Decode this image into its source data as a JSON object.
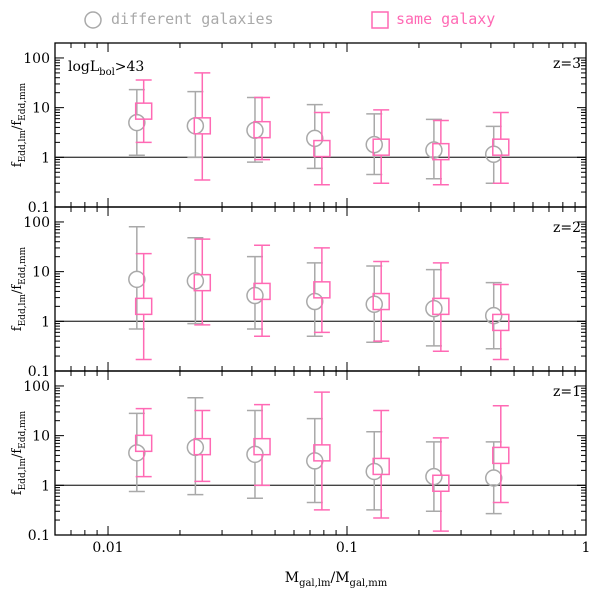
{
  "legend": {
    "different": "different galaxies",
    "same": "same galaxy"
  },
  "colors": {
    "different": "#a9a9a9",
    "same": "#ff69b4",
    "axis": "#000000",
    "reference_line": "#444444"
  },
  "annotation": "logL_bol>43",
  "annotation_parts": {
    "main": "logL",
    "sub": "bol",
    "rest": ">43"
  },
  "xlabel": {
    "main": "M",
    "sub": "gal,lm",
    "sep": "/M",
    "sub2": "gal,mm"
  },
  "ylabel": {
    "main": "f",
    "sub": "Edd,lm",
    "sep": "/f",
    "sub2": "Edd,mm"
  },
  "chart_data": {
    "type": "scatter",
    "xscale": "log",
    "yscale": "log",
    "xlim": [
      0.006,
      1
    ],
    "ylim": [
      0.1,
      200
    ],
    "xticklabels": [
      [
        "0.01",
        0.01
      ],
      [
        "0.1",
        0.1
      ],
      [
        "1",
        1
      ]
    ],
    "yticklabels": [
      [
        "0.1",
        0.1
      ],
      [
        "1",
        1
      ],
      [
        "10",
        10
      ],
      [
        "100",
        100
      ]
    ],
    "reference_y": 1,
    "panels": [
      {
        "label": "z=3",
        "series": [
          {
            "name": "different galaxies",
            "marker": "circle",
            "x": [
              0.0132,
              0.0232,
              0.0412,
              0.0733,
              0.13,
              0.231,
              0.411
            ],
            "y": [
              5.0,
              4.3,
              3.5,
              2.4,
              1.8,
              1.4,
              1.15
            ],
            "lo": [
              1.1,
              1.0,
              0.8,
              0.6,
              0.45,
              0.37,
              0.3
            ],
            "hi": [
              23,
              21,
              16,
              11.5,
              7.5,
              5.8,
              4.2
            ]
          },
          {
            "name": "same galaxy",
            "marker": "square",
            "x": [
              0.0141,
              0.0248,
              0.0441,
              0.0785,
              0.139,
              0.247,
              0.44
            ],
            "y": [
              8.5,
              4.3,
              3.6,
              1.5,
              1.6,
              1.3,
              1.6
            ],
            "lo": [
              2.0,
              0.35,
              0.9,
              0.28,
              0.3,
              0.28,
              0.3
            ],
            "hi": [
              36,
              50,
              16,
              8,
              9,
              5.5,
              8
            ]
          }
        ]
      },
      {
        "label": "z=2",
        "series": [
          {
            "name": "different galaxies",
            "marker": "circle",
            "x": [
              0.0132,
              0.0232,
              0.0412,
              0.0733,
              0.13,
              0.231,
              0.411
            ],
            "y": [
              7.0,
              6.5,
              3.3,
              2.5,
              2.2,
              1.8,
              1.3
            ],
            "lo": [
              0.7,
              0.9,
              0.7,
              0.5,
              0.38,
              0.32,
              0.28
            ],
            "hi": [
              80,
              48,
              20,
              15,
              13,
              11,
              6
            ]
          },
          {
            "name": "same galaxy",
            "marker": "square",
            "x": [
              0.0141,
              0.0248,
              0.0441,
              0.0785,
              0.139,
              0.247,
              0.44
            ],
            "y": [
              2.0,
              6.0,
              4.0,
              4.3,
              2.5,
              2.0,
              0.95
            ],
            "lo": [
              0.17,
              0.85,
              0.5,
              0.6,
              0.4,
              0.25,
              0.17
            ],
            "hi": [
              23,
              45,
              34,
              30,
              16,
              15,
              5.5
            ]
          }
        ]
      },
      {
        "label": "z=1",
        "series": [
          {
            "name": "different galaxies",
            "marker": "circle",
            "x": [
              0.0132,
              0.0232,
              0.0412,
              0.0733,
              0.13,
              0.231,
              0.411
            ],
            "y": [
              4.5,
              5.8,
              4.2,
              3.1,
              1.9,
              1.5,
              1.4
            ],
            "lo": [
              0.75,
              0.65,
              0.55,
              0.45,
              0.32,
              0.3,
              0.27
            ],
            "hi": [
              28,
              58,
              32,
              22,
              12,
              7.5,
              7.5
            ]
          },
          {
            "name": "same galaxy",
            "marker": "square",
            "x": [
              0.0141,
              0.0248,
              0.0441,
              0.0785,
              0.139,
              0.247,
              0.44
            ],
            "y": [
              7.0,
              6.0,
              6.0,
              4.5,
              2.4,
              1.1,
              4.0
            ],
            "lo": [
              1.5,
              1.2,
              1.0,
              0.32,
              0.22,
              0.12,
              0.45
            ],
            "hi": [
              35,
              32,
              42,
              75,
              32,
              9,
              40
            ]
          }
        ]
      }
    ]
  }
}
